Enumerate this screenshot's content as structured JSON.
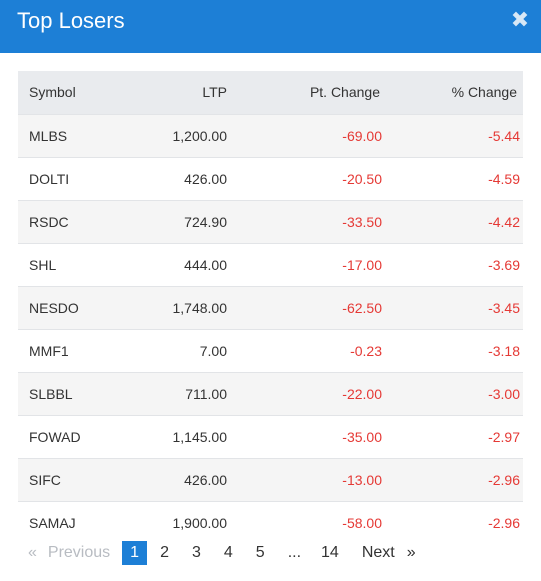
{
  "dialog": {
    "title": "Top Losers",
    "close_glyph": "✖",
    "close_icon": "close-icon"
  },
  "table": {
    "headers": [
      "Symbol",
      "LTP",
      "Pt. Change",
      "% Change"
    ],
    "rows": [
      [
        "MLBS",
        "1,200.00",
        "-69.00",
        "-5.44"
      ],
      [
        "DOLTI",
        "426.00",
        "-20.50",
        "-4.59"
      ],
      [
        "RSDC",
        "724.90",
        "-33.50",
        "-4.42"
      ],
      [
        "SHL",
        "444.00",
        "-17.00",
        "-3.69"
      ],
      [
        "NESDO",
        "1,748.00",
        "-62.50",
        "-3.45"
      ],
      [
        "MMF1",
        "7.00",
        "-0.23",
        "-3.18"
      ],
      [
        "SLBBL",
        "711.00",
        "-22.00",
        "-3.00"
      ],
      [
        "FOWAD",
        "1,145.00",
        "-35.00",
        "-2.97"
      ],
      [
        "SIFC",
        "426.00",
        "-13.00",
        "-2.96"
      ],
      [
        "SAMAJ",
        "1,900.00",
        "-58.00",
        "-2.96"
      ]
    ]
  },
  "pagination": {
    "prev_arrow": "«",
    "prev_label": "Previous",
    "pages": [
      "1",
      "2",
      "3",
      "4",
      "5"
    ],
    "active_page": "1",
    "ellipsis": "...",
    "last_page": "14",
    "next_label": "Next",
    "next_arrow": "»"
  },
  "colors": {
    "header_bg": "#1d7fd6",
    "negative": "#e53935",
    "active_page_bg": "#1d7fd6"
  }
}
